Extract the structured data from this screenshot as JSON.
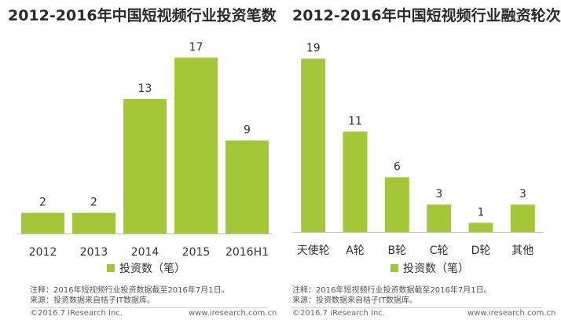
{
  "chart_data": [
    {
      "type": "bar",
      "title": "2012-2016年中国短视频行业投资笔数",
      "categories": [
        "2012",
        "2013",
        "2014",
        "2015",
        "2016H1"
      ],
      "values": [
        2,
        2,
        13,
        17,
        9
      ],
      "legend": "投资数（笔）",
      "ylim": [
        0,
        20
      ],
      "grid": false,
      "color": "#a4c639",
      "notes": [
        "注释：2016年短视频行业投资数据截至2016年7月1日。",
        "来源：投资数据来自桔子IT数据库。"
      ],
      "copyright": "©2016.7 iResearch Inc.",
      "website": "www.iresearch.com.cn"
    },
    {
      "type": "bar",
      "title": "2012-2016年中国短视频行业融资轮次",
      "categories": [
        "天使轮",
        "A轮",
        "B轮",
        "C轮",
        "D轮",
        "其他"
      ],
      "values": [
        19,
        11,
        6,
        3,
        1,
        3
      ],
      "legend": "投资数（笔）",
      "ylim": [
        0,
        20
      ],
      "grid": false,
      "color": "#a4c639",
      "notes": [
        "注释：2016年短视频行业投资数据截至2016年7月1日。",
        "来源：投资数据来自桔子IT数据库。"
      ],
      "copyright": "©2016.7 iResearch Inc.",
      "website": "www.iresearch.com.cn"
    }
  ]
}
